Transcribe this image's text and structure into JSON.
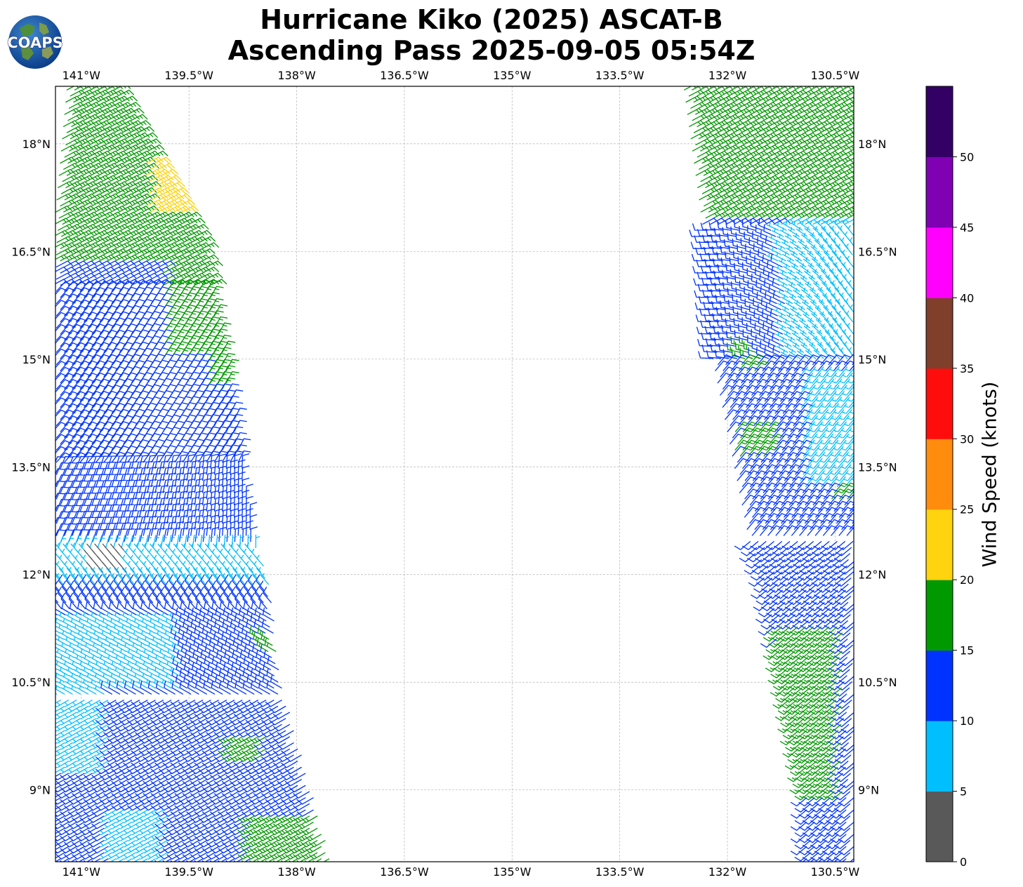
{
  "title": {
    "line1": "Hurricane Kiko (2025) ASCAT-B",
    "line2": "Ascending Pass 2025-09-05 05:54Z"
  },
  "logo": {
    "text": "COAPS",
    "icon": "globe-logo-icon"
  },
  "map": {
    "projection": "plate-carree",
    "lon_range": [
      -141.36,
      -130.24
    ],
    "lat_range": [
      8.0,
      18.8
    ],
    "gridlines": true,
    "lon_ticks": [
      {
        "value": -141.0,
        "label": "141°W"
      },
      {
        "value": -139.5,
        "label": "139.5°W"
      },
      {
        "value": -138.0,
        "label": "138°W"
      },
      {
        "value": -136.5,
        "label": "136.5°W"
      },
      {
        "value": -135.0,
        "label": "135°W"
      },
      {
        "value": -133.5,
        "label": "133.5°W"
      },
      {
        "value": -132.0,
        "label": "132°W"
      },
      {
        "value": -130.5,
        "label": "130.5°W"
      }
    ],
    "lat_ticks": [
      {
        "value": 18.0,
        "label": "18°N"
      },
      {
        "value": 16.5,
        "label": "16.5°N"
      },
      {
        "value": 15.0,
        "label": "15°N"
      },
      {
        "value": 13.5,
        "label": "13.5°N"
      },
      {
        "value": 12.0,
        "label": "12°N"
      },
      {
        "value": 10.5,
        "label": "10.5°N"
      },
      {
        "value": 9.0,
        "label": "9°N"
      }
    ]
  },
  "wind_barbs": {
    "swaths": [
      {
        "name": "west",
        "rows": [
          {
            "lat": 18.75,
            "west": -141.2,
            "east": -140.5
          },
          {
            "lat": 16.55,
            "west": -141.4,
            "east": -139.3
          },
          {
            "lat": 15.0,
            "west": -141.4,
            "east": -139.0
          },
          {
            "lat": 12.5,
            "west": -141.4,
            "east": -138.6
          },
          {
            "lat": 12.0,
            "west": -141.3,
            "east": -138.4
          },
          {
            "lat": 10.5,
            "west": -141.4,
            "east": -138.2
          },
          {
            "lat": 9.0,
            "west": -141.4,
            "east": -137.8
          },
          {
            "lat": 8.0,
            "west": -141.4,
            "east": -137.5
          }
        ]
      },
      {
        "name": "east",
        "rows": [
          {
            "lat": 18.75,
            "west": -132.6,
            "east": -130.2
          },
          {
            "lat": 16.55,
            "west": -132.3,
            "east": -130.2
          },
          {
            "lat": 15.0,
            "west": -132.2,
            "east": -130.2
          },
          {
            "lat": 12.5,
            "west": -131.7,
            "east": -130.2
          },
          {
            "lat": 12.0,
            "west": -131.5,
            "east": -130.2
          },
          {
            "lat": 10.5,
            "west": -131.2,
            "east": -130.2
          },
          {
            "lat": 9.0,
            "west": -130.9,
            "east": -130.2
          },
          {
            "lat": 8.0,
            "west": -130.9,
            "east": -130.2
          }
        ]
      }
    ],
    "speed_zones": [
      {
        "swath": "west",
        "lat_min": 17.5,
        "lat_max": 17.6,
        "lon_min": -140.0,
        "lon_max": -139.5,
        "speed": 22
      },
      {
        "swath": "west",
        "lat_min": 17.0,
        "lat_max": 17.8,
        "lon_min": -140.1,
        "lon_max": -139.45,
        "speed": 22
      },
      {
        "swath": "west",
        "lat_min": 11.95,
        "lat_max": 12.3,
        "lon_min": -140.85,
        "lon_max": -140.35,
        "speed": 3
      },
      {
        "swath": "west",
        "lat_min": 16.3,
        "lat_max": 18.8,
        "lon_min": -141.4,
        "lon_max": -139.0,
        "speed": 17
      },
      {
        "swath": "west",
        "lat_min": 15.0,
        "lat_max": 16.3,
        "lon_min": -139.9,
        "lon_max": -138.9,
        "speed": 16
      },
      {
        "swath": "west",
        "lat_min": 14.5,
        "lat_max": 15.1,
        "lon_min": -139.3,
        "lon_max": -138.9,
        "speed": 16
      },
      {
        "swath": "west",
        "lat_min": 8.0,
        "lat_max": 8.7,
        "lon_min": -138.6,
        "lon_max": -137.5,
        "speed": 16
      },
      {
        "swath": "west",
        "lat_min": 9.4,
        "lat_max": 9.8,
        "lon_min": -138.9,
        "lon_max": -138.4,
        "speed": 16
      },
      {
        "swath": "west",
        "lat_min": 10.9,
        "lat_max": 11.1,
        "lon_min": -138.5,
        "lon_max": -138.1,
        "speed": 16
      },
      {
        "swath": "west",
        "lat_min": 11.8,
        "lat_max": 12.4,
        "lon_min": -141.4,
        "lon_max": -138.3,
        "speed": 7
      },
      {
        "swath": "west",
        "lat_min": 10.4,
        "lat_max": 11.4,
        "lon_min": -141.4,
        "lon_max": -139.6,
        "speed": 7
      },
      {
        "swath": "west",
        "lat_min": 9.3,
        "lat_max": 10.4,
        "lon_min": -141.4,
        "lon_max": -140.6,
        "speed": 7
      },
      {
        "swath": "west",
        "lat_min": 8.0,
        "lat_max": 8.8,
        "lon_min": -140.6,
        "lon_max": -139.8,
        "speed": 7
      },
      {
        "swath": "east",
        "lat_min": 16.9,
        "lat_max": 18.8,
        "lon_min": -132.6,
        "lon_max": -130.2,
        "speed": 17
      },
      {
        "swath": "east",
        "lat_min": 16.3,
        "lat_max": 17.0,
        "lon_min": -131.3,
        "lon_max": -130.2,
        "speed": 7
      },
      {
        "swath": "east",
        "lat_min": 15.0,
        "lat_max": 16.3,
        "lon_min": -131.2,
        "lon_max": -130.2,
        "speed": 7
      },
      {
        "swath": "east",
        "lat_min": 13.2,
        "lat_max": 14.8,
        "lon_min": -131.0,
        "lon_max": -130.2,
        "speed": 7
      },
      {
        "swath": "east",
        "lat_min": 13.6,
        "lat_max": 14.0,
        "lon_min": -131.9,
        "lon_max": -131.4,
        "speed": 16
      },
      {
        "swath": "east",
        "lat_min": 14.8,
        "lat_max": 15.2,
        "lon_min": -131.85,
        "lon_max": -131.6,
        "speed": 16
      },
      {
        "swath": "east",
        "lat_min": 13.0,
        "lat_max": 13.4,
        "lon_min": -130.6,
        "lon_max": -130.3,
        "speed": 16
      },
      {
        "swath": "east",
        "lat_min": 8.9,
        "lat_max": 11.3,
        "lon_min": -131.3,
        "lon_max": -130.4,
        "speed": 16
      }
    ],
    "default_speed": 12
  },
  "colorbar": {
    "title": "Wind Speed (knots)",
    "bins": [
      {
        "min": 0,
        "max": 5,
        "color": "#595959"
      },
      {
        "min": 5,
        "max": 10,
        "color": "#00bfff"
      },
      {
        "min": 10,
        "max": 15,
        "color": "#0033ff"
      },
      {
        "min": 15,
        "max": 20,
        "color": "#009900"
      },
      {
        "min": 20,
        "max": 25,
        "color": "#ffd30d"
      },
      {
        "min": 25,
        "max": 30,
        "color": "#ff8c0d"
      },
      {
        "min": 30,
        "max": 35,
        "color": "#ff0d0d"
      },
      {
        "min": 35,
        "max": 40,
        "color": "#803f2b"
      },
      {
        "min": 40,
        "max": 45,
        "color": "#ff00ff"
      },
      {
        "min": 45,
        "max": 50,
        "color": "#8000b3"
      },
      {
        "min": 50,
        "max": 55,
        "color": "#330066"
      }
    ],
    "ticks": [
      "0",
      "5",
      "10",
      "15",
      "20",
      "25",
      "30",
      "35",
      "40",
      "45",
      "50"
    ]
  }
}
